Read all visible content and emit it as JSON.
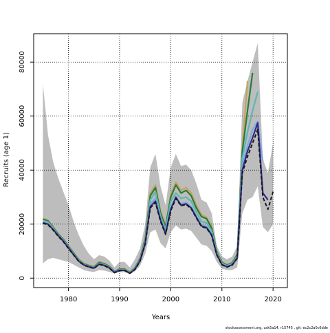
{
  "chart_data": {
    "type": "line",
    "title": "",
    "xlabel": "Years",
    "ylabel": "Recruits (age 1)",
    "xlim": [
      1973.2,
      2022.8
    ],
    "ylim": [
      -3500,
      90500
    ],
    "x_ticks": [
      1980,
      1990,
      2000,
      2010,
      2020
    ],
    "y_ticks": [
      0,
      20000,
      40000,
      60000,
      80000
    ],
    "grid": "dotted, at ticks",
    "footer_note": "stockassessment.org, usk5a14, r15745 , git: ec2c2a0c6dde",
    "confidence_band": {
      "x": [
        1975,
        1976,
        1977,
        1978,
        1979,
        1980,
        1981,
        1982,
        1983,
        1984,
        1985,
        1986,
        1987,
        1988,
        1989,
        1990,
        1991,
        1992,
        1993,
        1994,
        1995,
        1996,
        1997,
        1998,
        1999,
        2000,
        2001,
        2002,
        2003,
        2004,
        2005,
        2006,
        2007,
        2008,
        2009,
        2010,
        2011,
        2012,
        2013,
        2014,
        2015,
        2016,
        2017,
        2018,
        2019,
        2020
      ],
      "lower": [
        5500,
        7000,
        7500,
        7000,
        6500,
        6000,
        5000,
        4000,
        3000,
        2500,
        2300,
        3000,
        2800,
        2300,
        1800,
        2200,
        2200,
        1500,
        2500,
        4500,
        9000,
        17000,
        18000,
        13000,
        11000,
        17000,
        19500,
        18000,
        18300,
        17500,
        15000,
        12500,
        12000,
        10000,
        6000,
        3500,
        3000,
        3000,
        4000,
        24000,
        29000,
        30000,
        34000,
        19000,
        17000,
        20000
      ],
      "upper": [
        72000,
        53000,
        43000,
        37000,
        32000,
        27000,
        21000,
        16000,
        12000,
        9000,
        7000,
        8500,
        8000,
        6500,
        4000,
        6000,
        6000,
        4000,
        7000,
        11000,
        20000,
        41000,
        46000,
        34000,
        27000,
        41000,
        46000,
        41500,
        42000,
        40000,
        35000,
        29000,
        28000,
        24000,
        12000,
        8000,
        7000,
        8000,
        12000,
        65000,
        73000,
        80000,
        87000,
        44000,
        39000,
        50000
      ]
    },
    "series": [
      {
        "name": "",
        "color": "#c4a35a",
        "x": [
          1975,
          1976,
          1977,
          1978,
          1979,
          1980,
          1981,
          1982,
          1983,
          1984,
          1985,
          1986,
          1987,
          1988,
          1989,
          1990,
          1991,
          1992,
          1993,
          1994,
          1995,
          1996,
          1997,
          1998,
          1999,
          2000,
          2001,
          2002,
          2003,
          2004,
          2005,
          2006,
          2007,
          2008,
          2009,
          2010,
          2011,
          2012,
          2013,
          2014,
          2015
        ],
        "values": [
          22200,
          21500,
          19000,
          16500,
          14500,
          12000,
          9500,
          7000,
          5500,
          4800,
          4300,
          6000,
          5500,
          4500,
          2500,
          3500,
          3500,
          2200,
          4000,
          7500,
          15000,
          31500,
          34500,
          25000,
          19500,
          31000,
          35500,
          32500,
          33500,
          31500,
          27000,
          23500,
          22500,
          19000,
          10000,
          6000,
          5000,
          5800,
          9000,
          48000,
          73000
        ]
      },
      {
        "name": "",
        "color": "#2a7a3a",
        "x": [
          1975,
          1976,
          1977,
          1978,
          1979,
          1980,
          1981,
          1982,
          1983,
          1984,
          1985,
          1986,
          1987,
          1988,
          1989,
          1990,
          1991,
          1992,
          1993,
          1994,
          1995,
          1996,
          1997,
          1998,
          1999,
          2000,
          2001,
          2002,
          2003,
          2004,
          2005,
          2006,
          2007,
          2008,
          2009,
          2010,
          2011,
          2012,
          2013,
          2014,
          2015,
          2016
        ],
        "values": [
          21800,
          21200,
          18800,
          16300,
          14300,
          11800,
          9300,
          6800,
          5300,
          4600,
          4100,
          5800,
          5300,
          4300,
          2400,
          3300,
          3300,
          2100,
          3800,
          7200,
          14500,
          30500,
          33500,
          24000,
          19000,
          30000,
          34500,
          31500,
          32500,
          30500,
          26000,
          22800,
          22000,
          18500,
          9700,
          5800,
          4800,
          5600,
          8700,
          47000,
          62000,
          76000
        ]
      },
      {
        "name": "",
        "color": "#5bb8b0",
        "x": [
          1975,
          1976,
          1977,
          1978,
          1979,
          1980,
          1981,
          1982,
          1983,
          1984,
          1985,
          1986,
          1987,
          1988,
          1989,
          1990,
          1991,
          1992,
          1993,
          1994,
          1995,
          1996,
          1997,
          1998,
          1999,
          2000,
          2001,
          2002,
          2003,
          2004,
          2005,
          2006,
          2007,
          2008,
          2009,
          2010,
          2011,
          2012,
          2013,
          2014,
          2015,
          2016,
          2017
        ],
        "values": [
          21300,
          20800,
          18500,
          16000,
          14000,
          11500,
          9000,
          6600,
          5100,
          4400,
          3900,
          5500,
          5000,
          4100,
          2300,
          3100,
          3100,
          2000,
          3600,
          6900,
          13800,
          29000,
          32000,
          23000,
          18000,
          28500,
          31500,
          29500,
          30000,
          28500,
          24500,
          21000,
          20500,
          17500,
          9300,
          5500,
          4600,
          5300,
          8200,
          44500,
          54000,
          62000,
          69000
        ]
      },
      {
        "name": "",
        "color": "#7fa8e0",
        "x": [
          1975,
          1976,
          1977,
          1978,
          1979,
          1980,
          1981,
          1982,
          1983,
          1984,
          1985,
          1986,
          1987,
          1988,
          1989,
          1990,
          1991,
          1992,
          1993,
          1994,
          1995,
          1996,
          1997,
          1998,
          1999,
          2000,
          2001,
          2002,
          2003,
          2004,
          2005,
          2006,
          2007,
          2008,
          2009,
          2010,
          2011,
          2012,
          2013,
          2014,
          2015,
          2016,
          2017,
          2018
        ],
        "values": [
          20800,
          20300,
          18200,
          15800,
          13800,
          11300,
          8800,
          6400,
          5000,
          4300,
          3800,
          5300,
          4800,
          3900,
          2200,
          3000,
          3000,
          1900,
          3400,
          6600,
          13200,
          27500,
          29500,
          22000,
          17000,
          26500,
          29500,
          27500,
          28000,
          26500,
          23000,
          19800,
          19200,
          16500,
          8900,
          5200,
          4400,
          5100,
          7800,
          42000,
          49000,
          55000,
          58000,
          43000
        ]
      },
      {
        "name": "",
        "color": "#2e2a8c",
        "x": [
          1975,
          1976,
          1977,
          1978,
          1979,
          1980,
          1981,
          1982,
          1983,
          1984,
          1985,
          1986,
          1987,
          1988,
          1989,
          1990,
          1991,
          1992,
          1993,
          1994,
          1995,
          1996,
          1997,
          1998,
          1999,
          2000,
          2001,
          2002,
          2003,
          2004,
          2005,
          2006,
          2007,
          2008,
          2009,
          2010,
          2011,
          2012,
          2013,
          2014,
          2015,
          2016,
          2017,
          2018,
          2019
        ],
        "values": [
          20500,
          20000,
          18000,
          15700,
          13700,
          11200,
          8700,
          6300,
          4900,
          4200,
          3700,
          5200,
          4700,
          3800,
          2100,
          2900,
          2900,
          1800,
          3300,
          6400,
          12800,
          26500,
          28500,
          21500,
          16500,
          25500,
          30000,
          27000,
          27500,
          26000,
          22500,
          19300,
          18700,
          16000,
          8700,
          5000,
          4200,
          4900,
          7500,
          40000,
          47000,
          52000,
          57500,
          31500,
          29000
        ]
      },
      {
        "name": "",
        "color": "#1a1a1a",
        "dashed": true,
        "x": [
          1975,
          1976,
          1977,
          1978,
          1979,
          1980,
          1981,
          1982,
          1983,
          1984,
          1985,
          1986,
          1987,
          1988,
          1989,
          1990,
          1991,
          1992,
          1993,
          1994,
          1995,
          1996,
          1997,
          1998,
          1999,
          2000,
          2001,
          2002,
          2003,
          2004,
          2005,
          2006,
          2007,
          2008,
          2009,
          2010,
          2011,
          2012,
          2013,
          2014,
          2015,
          2016,
          2017,
          2018,
          2019,
          2020
        ],
        "values": [
          20300,
          19800,
          17800,
          15500,
          13500,
          11000,
          8600,
          6200,
          4800,
          4100,
          3600,
          5100,
          4600,
          3700,
          2000,
          2800,
          2800,
          1800,
          3200,
          6300,
          12600,
          26000,
          28000,
          21000,
          16200,
          25000,
          29500,
          26800,
          27300,
          25700,
          22300,
          19100,
          18500,
          15800,
          8600,
          4900,
          4100,
          4800,
          7300,
          39000,
          45000,
          50000,
          55000,
          30000,
          25500,
          32000
        ]
      }
    ]
  }
}
